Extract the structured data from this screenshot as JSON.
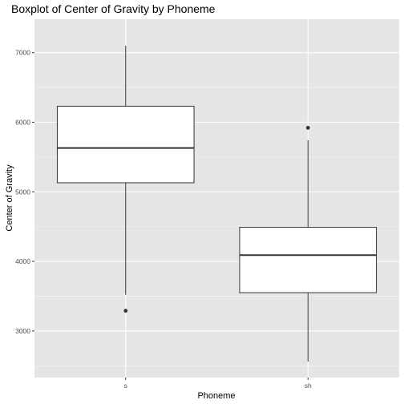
{
  "chart_data": {
    "type": "boxplot",
    "title": "Boxplot of Center of Gravity by Phoneme",
    "xlabel": "Phoneme",
    "ylabel": "Center of Gravity",
    "categories": [
      "s",
      "sh"
    ],
    "boxes": [
      {
        "category": "s",
        "whisker_low": 3520,
        "q1": 5130,
        "median": 5630,
        "q3": 6230,
        "whisker_high": 7100,
        "outliers": [
          3290
        ]
      },
      {
        "category": "sh",
        "whisker_low": 2560,
        "q1": 3550,
        "median": 4090,
        "q3": 4490,
        "whisker_high": 5740,
        "outliers": [
          5920
        ]
      }
    ],
    "yticks": [
      3000,
      4000,
      5000,
      6000,
      7000
    ],
    "ylim": [
      2330,
      7480
    ],
    "grid": true,
    "legend": "none",
    "colors": {
      "panel_background": "#e5e5e5",
      "grid_major": "#ffffff",
      "box_fill": "#ffffff",
      "box_stroke": "#333333",
      "outlier": "#333333"
    }
  }
}
